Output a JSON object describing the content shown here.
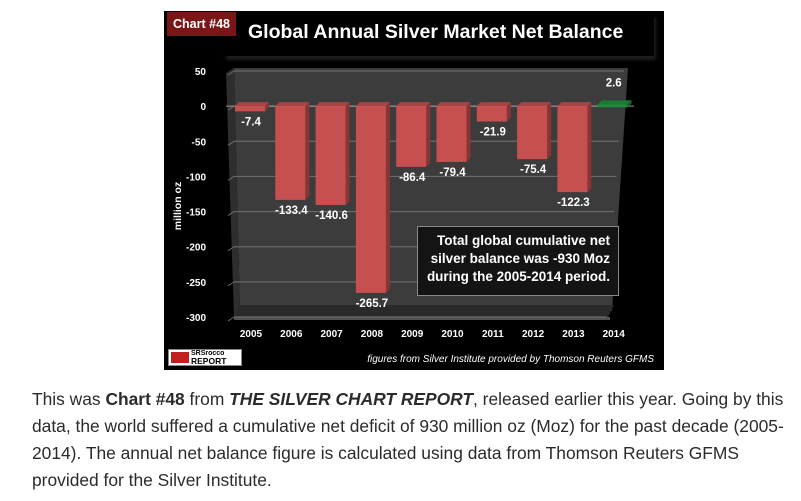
{
  "chart_data": {
    "type": "bar",
    "style": "3d-column",
    "badge": "Chart #48",
    "title": "Global Annual Silver Market Net Balance",
    "xlabel": "",
    "ylabel": "million oz",
    "categories": [
      "2005",
      "2006",
      "2007",
      "2008",
      "2009",
      "2010",
      "2011",
      "2012",
      "2013",
      "2014"
    ],
    "values": [
      -7.4,
      -133.4,
      -140.6,
      -265.7,
      -86.4,
      -79.4,
      -21.9,
      -75.4,
      -122.3,
      2.6
    ],
    "data_labels": [
      "-7.4",
      "-133.4",
      "-140.6",
      "-265.7",
      "-86.4",
      "-79.4",
      "-21.9",
      "-75.4",
      "-122.3",
      "2.6"
    ],
    "ylim": [
      -300,
      50
    ],
    "yticks": [
      50,
      0,
      -50,
      -100,
      -150,
      -200,
      -250,
      -300
    ],
    "grid": true,
    "colors": {
      "negative": "#c65050",
      "positive": "#1e8a3a",
      "background": "#000000",
      "plot": "#3c3c3c",
      "badge": "#7a1518"
    },
    "annotation": [
      "Total global cumulative net",
      "silver balance was -930 Moz",
      "during the 2005-2014 period."
    ],
    "source": "figures from Silver Institute provided by Thomson Reuters GFMS",
    "logo": {
      "line1": "SRSrocco",
      "line2": "REPORT"
    }
  },
  "caption": {
    "prefix": "This was ",
    "chart_ref": "Chart #48",
    "middle": " from ",
    "publication": "THE SILVER CHART REPORT",
    "rest": ", released earlier this year. Going by this data, the world suffered a cumulative net deficit of 930 million oz (Moz) for the past decade (2005-2014). The annual net balance figure is calculated using data from Thomson Reuters GFMS provided for the Silver Institute."
  }
}
